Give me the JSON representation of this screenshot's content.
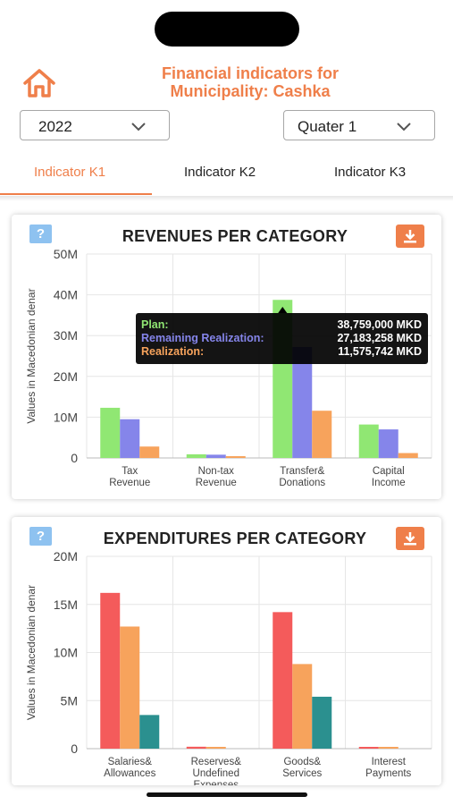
{
  "header": {
    "title_line1": "Financial indicators for",
    "title_line2": "Municipality: Cashka",
    "year": "2022",
    "quarter": "Quater 1"
  },
  "tabs": [
    "Indicator K1",
    "Indicator K2",
    "Indicator K3"
  ],
  "active_tab": 0,
  "icons": {
    "home": "home-icon",
    "help": "help-icon",
    "download": "download-icon",
    "chevron": "chevron-down-icon"
  },
  "help_label": "?",
  "colors": {
    "accent": "#ef7f4a",
    "plan": "#90e773",
    "remaining": "#8585ea",
    "realization": "#f7a35c",
    "exp1": "#f45b5b",
    "exp2": "#f7a35c",
    "exp3": "#2b908f"
  },
  "revenues": {
    "title": "REVENUES PER CATEGORY",
    "chart_data": {
      "type": "bar",
      "title": "REVENUES PER CATEGORY",
      "ylabel": "Values in Macedonian denar",
      "ylim": [
        0,
        50000000
      ],
      "yticks": [
        "0",
        "10M",
        "20M",
        "30M",
        "40M",
        "50M"
      ],
      "categories": [
        [
          "Tax",
          "Revenue"
        ],
        [
          "Non-tax",
          "Revenue"
        ],
        [
          "Transfer&",
          "Donations"
        ],
        [
          "Capital",
          "Income"
        ]
      ],
      "series": [
        {
          "key": "plan",
          "values": [
            12300000,
            900000,
            38759000,
            8200000
          ]
        },
        {
          "key": "remaining",
          "values": [
            9500000,
            800000,
            27183258,
            7000000
          ]
        },
        {
          "key": "realization",
          "values": [
            2800000,
            100000,
            11575742,
            1200000
          ]
        }
      ],
      "tooltip": {
        "rows": [
          {
            "label": "Plan:",
            "value": "38,759,000 MKD",
            "color": "#90e773"
          },
          {
            "label": "Remaining Realization:",
            "value": "27,183,258 MKD",
            "color": "#8585ea"
          },
          {
            "label": "Realization:",
            "value": "11,575,742 MKD",
            "color": "#f7a35c"
          }
        ]
      }
    }
  },
  "expenditures": {
    "title": "EXPENDITURES PER CATEGORY",
    "chart_data": {
      "type": "bar",
      "title": "EXPENDITURES PER CATEGORY",
      "ylabel": "Values in Macedonian denar",
      "ylim": [
        0,
        20000000
      ],
      "yticks": [
        "0",
        "5M",
        "10M",
        "15M",
        "20M"
      ],
      "categories": [
        [
          "Salaries&",
          "Allowances"
        ],
        [
          "Reserves&",
          "Undefined",
          "Expenses"
        ],
        [
          "Goods&",
          "Services"
        ],
        [
          "Interest",
          "Payments"
        ]
      ],
      "series": [
        {
          "key": "exp1",
          "values": [
            16200000,
            200000,
            14200000,
            80000
          ]
        },
        {
          "key": "exp2",
          "values": [
            12700000,
            180000,
            8800000,
            60000
          ]
        },
        {
          "key": "exp3",
          "values": [
            3500000,
            0,
            5400000,
            0
          ]
        }
      ]
    }
  }
}
